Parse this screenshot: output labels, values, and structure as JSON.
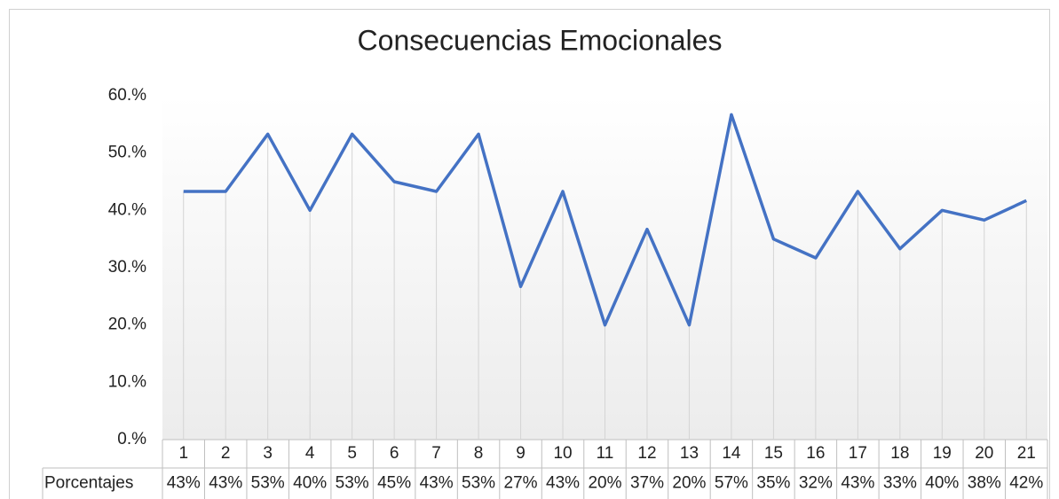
{
  "chart_data": {
    "type": "line",
    "title": "Consecuencias Emocionales",
    "categories": [
      "1",
      "2",
      "3",
      "4",
      "5",
      "6",
      "7",
      "8",
      "9",
      "10",
      "11",
      "12",
      "13",
      "14",
      "15",
      "16",
      "17",
      "18",
      "19",
      "20",
      "21"
    ],
    "series": [
      {
        "name": "Porcentajes",
        "color": "#4472c4",
        "values": [
          43.3,
          43.3,
          53.3,
          40,
          53.3,
          45,
          43.3,
          53.3,
          26.7,
          43.3,
          20,
          36.7,
          20,
          56.7,
          35,
          31.7,
          43.3,
          33.3,
          40,
          38.3,
          41.7
        ],
        "value_labels": [
          "43%",
          "43%",
          "53%",
          "40%",
          "53%",
          "45%",
          "43%",
          "53%",
          "27%",
          "43%",
          "20%",
          "37%",
          "20%",
          "57%",
          "35%",
          "32%",
          "43%",
          "33%",
          "40%",
          "38%",
          "42%"
        ]
      }
    ],
    "ylim": [
      0,
      60
    ],
    "yticks": [
      {
        "value": 0,
        "label": "0.%"
      },
      {
        "value": 10,
        "label": "10.%"
      },
      {
        "value": 20,
        "label": "20.%"
      },
      {
        "value": 30,
        "label": "30.%"
      },
      {
        "value": 40,
        "label": "40.%"
      },
      {
        "value": 50,
        "label": "50.%"
      },
      {
        "value": 60,
        "label": "60.%"
      }
    ],
    "drop_lines": true
  }
}
